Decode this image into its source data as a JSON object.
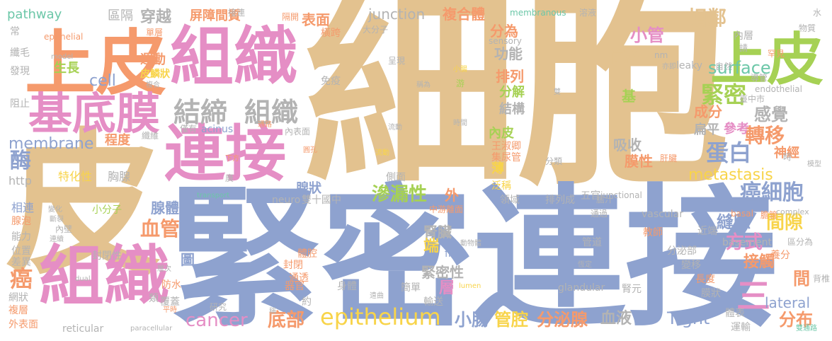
{
  "palette": {
    "tan": "#e3c28f",
    "blue": "#8ea2cf",
    "pink": "#e58ec5",
    "orange": "#f59a6c",
    "green": "#a6d154",
    "gray": "#b3b3b3",
    "yellow": "#f8d44a",
    "teal": "#6cc7a8"
  },
  "words": [
    {
      "text": "細胞",
      "color": "#e3c28f"
    },
    {
      "text": "緊密連接",
      "color": "#8ea2cf"
    },
    {
      "text": "皮",
      "color": "#e3c28f"
    },
    {
      "text": "上皮",
      "color": "#f59a6c"
    },
    {
      "text": "組織",
      "color": "#e58ec5"
    },
    {
      "text": "上皮",
      "color": "#a6d154"
    },
    {
      "text": "連接",
      "color": "#e58ec5"
    },
    {
      "text": "基底膜",
      "color": "#e58ec5"
    },
    {
      "text": "組織",
      "color": "#e58ec5"
    },
    {
      "text": "結締",
      "color": "#b3b3b3"
    },
    {
      "text": "組織",
      "color": "#b3b3b3"
    },
    {
      "text": "緊密",
      "color": "#a6d154"
    },
    {
      "text": "感覺",
      "color": "#b3b3b3"
    },
    {
      "text": "轉移",
      "color": "#f59a6c"
    },
    {
      "text": "蛋白",
      "color": "#8ea2cf"
    },
    {
      "text": "神經",
      "color": "#f59a6c"
    },
    {
      "text": "metastasis",
      "color": "#f8d44a"
    },
    {
      "text": "癌細胞",
      "color": "#8ea2cf"
    },
    {
      "text": "間隙",
      "color": "#f8d44a"
    },
    {
      "text": "縫隙",
      "color": "#8ea2cf"
    },
    {
      "text": "方式",
      "color": "#e58ec5"
    },
    {
      "text": "接觸",
      "color": "#f59a6c"
    },
    {
      "text": "間",
      "color": "#f59a6c"
    },
    {
      "text": "三",
      "color": "#e58ec5"
    },
    {
      "text": "分布",
      "color": "#f59a6c"
    },
    {
      "text": "lateral",
      "color": "#8ea2cf"
    },
    {
      "text": "epithelium",
      "color": "#f8d44a"
    },
    {
      "text": "cancer",
      "color": "#e58ec5"
    },
    {
      "text": "Tight",
      "color": "#8ea2cf"
    },
    {
      "text": "分泌腺",
      "color": "#f59a6c"
    },
    {
      "text": "管腔",
      "color": "#f8d44a"
    },
    {
      "text": "小腸",
      "color": "#8ea2cf"
    },
    {
      "text": "血液",
      "color": "#b3b3b3"
    },
    {
      "text": "底部",
      "color": "#f59a6c"
    },
    {
      "text": "癌",
      "color": "#f59a6c"
    },
    {
      "text": "血管",
      "color": "#f59a6c"
    },
    {
      "text": "腺體",
      "color": "#8ea2cf"
    },
    {
      "text": "滲漏性",
      "color": "#a6d154"
    },
    {
      "text": "腎臟",
      "color": "#b3b3b3"
    },
    {
      "text": "緊密性",
      "color": "#b3b3b3"
    },
    {
      "text": "membrane",
      "color": "#8ea2cf"
    },
    {
      "text": "cell",
      "color": "#8ea2cf"
    },
    {
      "text": "酶",
      "color": "#8ea2cf"
    },
    {
      "text": "surface",
      "color": "#6cc7a8"
    },
    {
      "text": "junction",
      "color": "#b3b3b3"
    },
    {
      "text": "相鄰",
      "color": "#e3c28f"
    },
    {
      "text": "小管",
      "color": "#e58ec5"
    },
    {
      "text": "位於",
      "color": "#e3c28f"
    },
    {
      "text": "表面",
      "color": "#f59a6c"
    },
    {
      "text": "複合體",
      "color": "#f59a6c"
    },
    {
      "text": "分為",
      "color": "#f59a6c"
    },
    {
      "text": "排列",
      "color": "#f59a6c"
    },
    {
      "text": "功能",
      "color": "#b3b3b3"
    },
    {
      "text": "分解",
      "color": "#a6d154"
    },
    {
      "text": "結構",
      "color": "#b3b3b3"
    },
    {
      "text": "內皮",
      "color": "#a6d154"
    },
    {
      "text": "吸收",
      "color": "#b3b3b3"
    },
    {
      "text": "膜性",
      "color": "#f59a6c"
    },
    {
      "text": "成分",
      "color": "#f59a6c"
    },
    {
      "text": "參考",
      "color": "#e58ec5"
    },
    {
      "text": "扁平",
      "color": "#b3b3b3"
    },
    {
      "text": "穿越",
      "color": "#b3b3b3"
    },
    {
      "text": "屏障間質",
      "color": "#f59a6c"
    },
    {
      "text": "區隔",
      "color": "#b3b3b3"
    },
    {
      "text": "運動",
      "color": "#f59a6c"
    },
    {
      "text": "皮鱗狀",
      "color": "#f8d44a"
    },
    {
      "text": "生長",
      "color": "#a6d154"
    },
    {
      "text": "程度",
      "color": "#f59a6c"
    },
    {
      "text": "腺狀",
      "color": "#8ea2cf"
    },
    {
      "text": "外",
      "color": "#f59a6c"
    },
    {
      "text": "端",
      "color": "#f8d44a"
    },
    {
      "text": "層",
      "color": "#e58ec5"
    },
    {
      "text": "圖",
      "color": "#8ea2cf"
    },
    {
      "text": "pathway",
      "color": "#6cc7a8"
    },
    {
      "text": "epithelial",
      "color": "#f59a6c"
    },
    {
      "text": "http",
      "color": "#b3b3b3"
    },
    {
      "text": "相連",
      "color": "#8ea2cf"
    },
    {
      "text": "特化性",
      "color": "#f8d44a"
    },
    {
      "text": "胸腺",
      "color": "#b3b3b3"
    },
    {
      "text": "小分子",
      "color": "#a6d154"
    },
    {
      "text": "腺泡",
      "color": "#f59a6c"
    },
    {
      "text": "能力",
      "color": "#b3b3b3"
    },
    {
      "text": "位置",
      "color": "#b3b3b3"
    },
    {
      "text": "差異",
      "color": "#b3b3b3"
    },
    {
      "text": "網狀",
      "color": "#b3b3b3"
    },
    {
      "text": "複層",
      "color": "#f59a6c"
    },
    {
      "text": "外表面",
      "color": "#f59a6c"
    },
    {
      "text": "reticular",
      "color": "#b3b3b3"
    },
    {
      "text": "防水",
      "color": "#f59a6c"
    },
    {
      "text": "覆蓋",
      "color": "#b3b3b3"
    },
    {
      "text": "類",
      "color": "#b3b3b3"
    },
    {
      "text": "研究",
      "color": "#b3b3b3"
    },
    {
      "text": "封閉性",
      "color": "#b3b3b3"
    },
    {
      "text": "封閉",
      "color": "#f59a6c"
    },
    {
      "text": "通透",
      "color": "#f59a6c"
    },
    {
      "text": "器官",
      "color": "#f59a6c"
    },
    {
      "text": "身體",
      "color": "#b3b3b3"
    },
    {
      "text": "體腔",
      "color": "#f59a6c"
    },
    {
      "text": "輸送",
      "color": "#b3b3b3"
    },
    {
      "text": "簡單",
      "color": "#b3b3b3"
    },
    {
      "text": "約",
      "color": "#b3b3b3"
    },
    {
      "text": "glandular",
      "color": "#b3b3b3"
    },
    {
      "text": "free",
      "color": "#8ea2cf"
    },
    {
      "text": "管道",
      "color": "#b3b3b3"
    },
    {
      "text": "分泌部",
      "color": "#b3b3b3"
    },
    {
      "text": "變移",
      "color": "#b3b3b3"
    },
    {
      "text": "長度",
      "color": "#f59a6c"
    },
    {
      "text": "膜狀",
      "color": "#b3b3b3"
    },
    {
      "text": "養分",
      "color": "#f59a6c"
    },
    {
      "text": "腎元",
      "color": "#b3b3b3"
    },
    {
      "text": "體表",
      "color": "#b3b3b3"
    },
    {
      "text": "運輸",
      "color": "#b3b3b3"
    },
    {
      "text": "背椎",
      "color": "#b3b3b3"
    },
    {
      "text": "basement",
      "color": "#b3b3b3"
    },
    {
      "text": "區分為",
      "color": "#b3b3b3"
    },
    {
      "text": "近端",
      "color": "#b3b3b3"
    },
    {
      "text": "教師",
      "color": "#f59a6c"
    },
    {
      "text": "vascular",
      "color": "#b3b3b3"
    },
    {
      "text": "basal",
      "color": "#f59a6c"
    },
    {
      "text": "膽管",
      "color": "#f59a6c"
    },
    {
      "text": "complex",
      "color": "#b3b3b3"
    },
    {
      "text": "五官",
      "color": "#b3b3b3"
    },
    {
      "text": "junctional",
      "color": "#b3b3b3"
    },
    {
      "text": "膽汁",
      "color": "#b3b3b3"
    },
    {
      "text": "通過",
      "color": "#b3b3b3"
    },
    {
      "text": "排列成",
      "color": "#b3b3b3"
    },
    {
      "text": "領域",
      "color": "#b3b3b3"
    },
    {
      "text": "泛稱",
      "color": "#f8d44a"
    },
    {
      "text": "中游離面",
      "color": "#f59a6c"
    },
    {
      "text": "雙十國中",
      "color": "#b3b3b3"
    },
    {
      "text": "neuro",
      "color": "#b3b3b3"
    },
    {
      "text": "側面",
      "color": "#b3b3b3"
    },
    {
      "text": "薄",
      "color": "#f8d44a"
    },
    {
      "text": "集尿管",
      "color": "#f59a6c"
    },
    {
      "text": "王淑卿",
      "color": "#f59a6c"
    },
    {
      "text": "分類",
      "color": "#b3b3b3"
    },
    {
      "text": "肝臟",
      "color": "#f59a6c"
    },
    {
      "text": "內表面",
      "color": "#b3b3b3"
    },
    {
      "text": "纖維",
      "color": "#b3b3b3"
    },
    {
      "text": "acinus",
      "color": "#8ea2cf"
    },
    {
      "text": "僅有",
      "color": "#b3b3b3"
    },
    {
      "text": "免疫",
      "color": "#b3b3b3"
    },
    {
      "text": "大分子",
      "color": "#b3b3b3"
    },
    {
      "text": "橫跨",
      "color": "#f59a6c"
    },
    {
      "text": "隔開",
      "color": "#f59a6c"
    },
    {
      "text": "接連",
      "color": "#b3b3b3"
    },
    {
      "text": "單層",
      "color": "#f59a6c"
    },
    {
      "text": "常",
      "color": "#b3b3b3"
    },
    {
      "text": "纖毛",
      "color": "#b3b3b3"
    },
    {
      "text": "發現",
      "color": "#b3b3b3"
    },
    {
      "text": "阻止",
      "color": "#b3b3b3"
    },
    {
      "text": "membranous",
      "color": "#6cc7a8"
    },
    {
      "text": "溶液",
      "color": "#b3b3b3"
    },
    {
      "text": "水",
      "color": "#b3b3b3"
    },
    {
      "text": "物質",
      "color": "#b3b3b3"
    },
    {
      "text": "內層",
      "color": "#b3b3b3"
    },
    {
      "text": "請",
      "color": "#b3b3b3"
    },
    {
      "text": "罕見",
      "color": "#f59a6c"
    },
    {
      "text": "nm",
      "color": "#b3b3b3"
    },
    {
      "text": "sensory",
      "color": "#b3b3b3"
    },
    {
      "text": "leaky",
      "color": "#b3b3b3"
    },
    {
      "text": "自然",
      "color": "#b3b3b3"
    },
    {
      "text": "導管",
      "color": "#b3b3b3"
    },
    {
      "text": "endothelial",
      "color": "#b3b3b3"
    },
    {
      "text": "臺中市",
      "color": "#b3b3b3"
    },
    {
      "text": "時",
      "color": "#b3b3b3"
    },
    {
      "text": "基",
      "color": "#a6d154"
    },
    {
      "text": "呈現",
      "color": "#b3b3b3"
    },
    {
      "text": "游",
      "color": "#a6d154"
    },
    {
      "text": "小腸",
      "color": "#f8d44a"
    },
    {
      "text": "稱為",
      "color": "#b3b3b3"
    },
    {
      "text": "雙",
      "color": "#b3b3b3"
    },
    {
      "text": "亦即",
      "color": "#b3b3b3"
    },
    {
      "text": "時間",
      "color": "#b3b3b3"
    },
    {
      "text": "流動",
      "color": "#f8d44a"
    },
    {
      "text": "下方",
      "color": "#f59a6c"
    },
    {
      "text": "通路",
      "color": "#f59a6c"
    },
    {
      "text": "圓孔",
      "color": "#f59a6c"
    },
    {
      "text": "model",
      "color": "#b3b3b3"
    },
    {
      "text": "複合",
      "color": "#b3b3b3"
    },
    {
      "text": "transport",
      "color": "#6cc7a8"
    },
    {
      "text": "廣",
      "color": "#b3b3b3"
    },
    {
      "text": "流動",
      "color": "#b3b3b3"
    },
    {
      "text": "變化",
      "color": "#b3b3b3"
    },
    {
      "text": "內壁",
      "color": "#b3b3b3"
    },
    {
      "text": "斷裂",
      "color": "#b3b3b3"
    },
    {
      "text": "連續",
      "color": "#b3b3b3"
    },
    {
      "text": "dual",
      "color": "#b3b3b3"
    },
    {
      "text": "層次",
      "color": "#b3b3b3"
    },
    {
      "text": "平時",
      "color": "#f59a6c"
    },
    {
      "text": "paracellular",
      "color": "#b3b3b3"
    },
    {
      "text": "稱",
      "color": "#b3b3b3"
    },
    {
      "text": "遠曲",
      "color": "#b3b3b3"
    },
    {
      "text": "lumen",
      "color": "#f8d44a"
    },
    {
      "text": "動物體",
      "color": "#b3b3b3"
    },
    {
      "text": "恆定",
      "color": "#b3b3b3"
    },
    {
      "text": "模型",
      "color": "#b3b3b3"
    },
    {
      "text": "雙通路",
      "color": "#6cc7a8"
    }
  ]
}
